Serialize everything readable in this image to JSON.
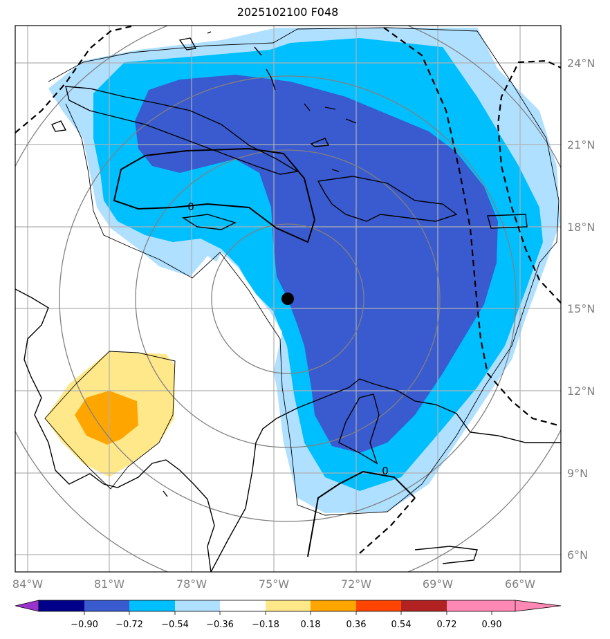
{
  "title": "2025102100 F048",
  "colors": {
    "level_lt_090": "#9933cc",
    "level_090_072": "#00008b",
    "level_072_054": "#3a5bcf",
    "level_054_036": "#00bfff",
    "level_036_018": "#b0e0ff",
    "level_018_018": "#ffffff",
    "level_018_036": "#ffe88a",
    "level_036_054": "#ffa500",
    "level_054_072": "#ff4500",
    "level_072_090": "#b22222",
    "level_gt_090": "#ff88b4",
    "gridline": "#b0b0b0",
    "range_ring": "#808080",
    "coastline": "#000000"
  },
  "latitude_labels": [
    "24°N",
    "21°N",
    "18°N",
    "15°N",
    "12°N",
    "9°N",
    "6°N"
  ],
  "longitude_labels": [
    "84°W",
    "81°W",
    "78°W",
    "75°W",
    "72°W",
    "69°W",
    "66°W"
  ],
  "contour_labels": [
    "0",
    "0"
  ],
  "center_marker": {
    "lat": 15.4,
    "lon": -74.5,
    "name": "storm center"
  },
  "colorbar": {
    "ticks": [
      "−0.90",
      "−0.72",
      "−0.54",
      "−0.36",
      "−0.18",
      "0.18",
      "0.36",
      "0.54",
      "0.72",
      "0.90"
    ],
    "extend": "both"
  }
}
